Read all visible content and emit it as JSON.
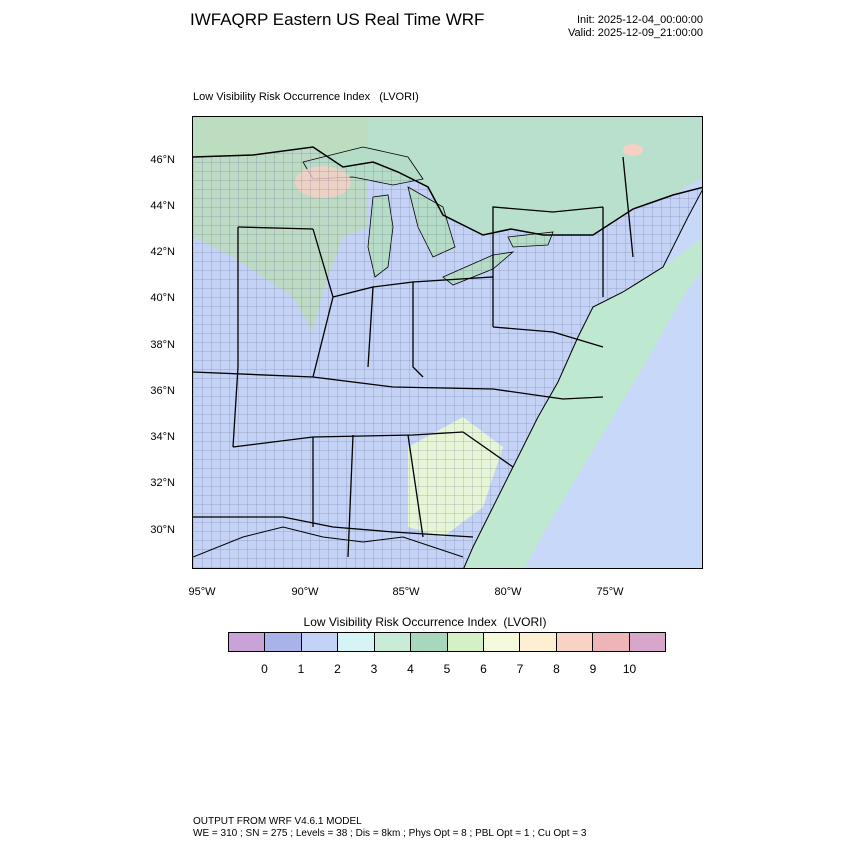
{
  "header": {
    "title": "IWFAQRP Eastern US Real Time WRF",
    "init": "Init: 2025-12-04_00:00:00",
    "valid": "Valid: 2025-12-09_21:00:00"
  },
  "map": {
    "title": "Low Visibility Risk Occurrence Index   (LVORI)",
    "lat_ticks": [
      "46°N",
      "44°N",
      "42°N",
      "40°N",
      "38°N",
      "36°N",
      "34°N",
      "32°N",
      "30°N"
    ],
    "lon_ticks": [
      "95°W",
      "90°W",
      "85°W",
      "80°W",
      "75°W"
    ],
    "colors": {
      "land_base": "#c4d2f5",
      "ocean": "#c8d8f8",
      "canada_land": "#b8e0cc",
      "lakes": "#b4dcc6",
      "upper_midwest": "#bcdcbc",
      "coastal_green": "#bfe8d0",
      "southeast_pale": "#e6f5d6",
      "hotspot": "#f7cfc4"
    }
  },
  "legend": {
    "title": "Low Visibility Risk Occurrence Index  (LVORI)",
    "colors": [
      "#c9a3d8",
      "#aab2ea",
      "#c4d2f7",
      "#d6f4f6",
      "#c8ecd8",
      "#a7d7bd",
      "#d5f0c4",
      "#f5fadc",
      "#fdf0d2",
      "#f8d3c5",
      "#eeb5b8",
      "#d8a5cb"
    ],
    "labels": [
      "0",
      "1",
      "2",
      "3",
      "4",
      "5",
      "6",
      "7",
      "8",
      "9",
      "10"
    ]
  },
  "footer": {
    "line1": "OUTPUT FROM WRF V4.6.1 MODEL",
    "line2": "WE = 310 ; SN = 275 ; Levels = 38 ; Dis = 8km ; Phys Opt = 8 ; PBL Opt = 1 ; Cu Opt = 3"
  }
}
